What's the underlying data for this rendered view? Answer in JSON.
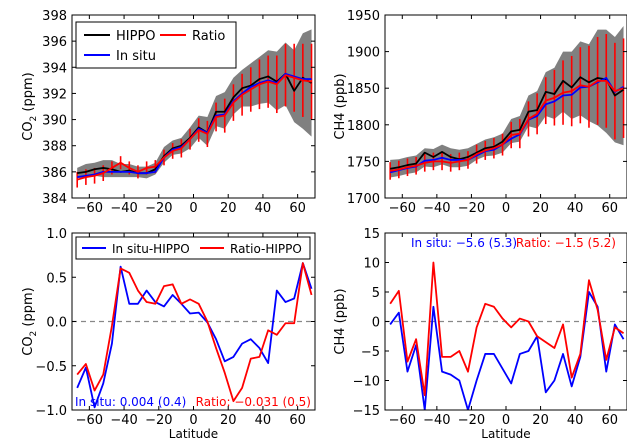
{
  "chart_data": [
    {
      "id": "co2-profile",
      "type": "line",
      "xlabel": "",
      "ylabel_main": "CO",
      "ylabel_sub": "2",
      "ylabel_unit": " (ppm)",
      "xlim": [
        -70,
        70
      ],
      "ylim": [
        384,
        398
      ],
      "xticks": [
        -60,
        -40,
        -20,
        0,
        20,
        40,
        60
      ],
      "yticks": [
        384,
        386,
        388,
        390,
        392,
        394,
        396,
        398
      ],
      "legend": {
        "placement": "top-left",
        "columns": 2
      },
      "x": [
        -67,
        -62,
        -57,
        -52,
        -47,
        -42,
        -37,
        -32,
        -27,
        -22,
        -17,
        -12,
        -7,
        -2,
        3,
        8,
        13,
        18,
        23,
        28,
        33,
        38,
        43,
        48,
        53,
        58,
        63,
        68
      ],
      "series": [
        {
          "name": "HIPPO",
          "color": "#000000",
          "values": [
            385.9,
            386.0,
            386.2,
            386.3,
            386.2,
            386.0,
            386.1,
            385.9,
            385.9,
            386.2,
            387.2,
            387.8,
            388.0,
            388.6,
            389.4,
            389.0,
            390.6,
            390.6,
            391.7,
            392.4,
            392.6,
            393.1,
            393.3,
            392.9,
            393.5,
            392.2,
            393.2,
            392.8
          ]
        },
        {
          "name": "In situ",
          "color": "#0000ff",
          "values": [
            385.6,
            385.7,
            385.8,
            386.0,
            386.0,
            386.0,
            386.0,
            385.9,
            385.9,
            386.0,
            387.1,
            387.7,
            387.9,
            388.5,
            389.3,
            389.0,
            390.3,
            390.4,
            391.4,
            392.0,
            392.5,
            392.8,
            393.0,
            392.8,
            393.5,
            393.3,
            393.1,
            393.1
          ]
        },
        {
          "name": "Ratio",
          "color": "#ff0000",
          "values": [
            385.4,
            385.6,
            385.7,
            385.9,
            386.3,
            386.7,
            386.3,
            386.0,
            386.3,
            386.4,
            387.1,
            387.6,
            387.8,
            388.5,
            389.2,
            388.9,
            390.2,
            390.3,
            391.3,
            391.9,
            392.3,
            392.7,
            392.9,
            392.7,
            393.4,
            393.2,
            393.0,
            392.9
          ],
          "error": [
            0.6,
            0.6,
            0.6,
            0.6,
            0.5,
            0.5,
            0.5,
            0.5,
            0.5,
            0.5,
            0.6,
            0.6,
            0.7,
            0.8,
            0.9,
            1.0,
            1.1,
            1.3,
            1.4,
            1.6,
            1.7,
            1.9,
            2.0,
            2.2,
            2.4,
            2.6,
            2.8,
            2.9
          ]
        }
      ],
      "band": {
        "color": "#808080",
        "lower": [
          385.5,
          385.6,
          385.7,
          385.6,
          385.6,
          385.6,
          385.6,
          385.6,
          385.5,
          385.8,
          386.7,
          387.3,
          387.4,
          387.8,
          388.6,
          388.0,
          389.5,
          389.3,
          390.4,
          391.0,
          391.0,
          391.2,
          391.3,
          390.7,
          391.1,
          389.8,
          389.3,
          388.7
        ],
        "upper": [
          386.3,
          386.6,
          386.7,
          386.9,
          386.9,
          386.6,
          386.6,
          386.4,
          386.4,
          386.7,
          387.9,
          388.4,
          388.6,
          389.4,
          390.3,
          390.2,
          391.8,
          392.1,
          393.2,
          393.8,
          394.3,
          394.8,
          395.3,
          395.2,
          395.9,
          395.3,
          396.6,
          396.9
        ]
      }
    },
    {
      "id": "ch4-profile",
      "type": "line",
      "xlabel": "",
      "ylabel_main": "CH4",
      "ylabel_sub": "",
      "ylabel_unit": " (ppb)",
      "xlim": [
        -70,
        70
      ],
      "ylim": [
        1700,
        1950
      ],
      "xticks": [
        -60,
        -40,
        -20,
        0,
        20,
        40,
        60
      ],
      "yticks": [
        1700,
        1750,
        1800,
        1850,
        1900,
        1950
      ],
      "x": [
        -67,
        -62,
        -57,
        -52,
        -47,
        -42,
        -37,
        -32,
        -27,
        -22,
        -17,
        -12,
        -7,
        -2,
        3,
        8,
        13,
        18,
        23,
        28,
        33,
        38,
        43,
        48,
        53,
        58,
        63,
        68
      ],
      "series": [
        {
          "name": "HIPPO",
          "color": "#000000",
          "values": [
            1740,
            1742,
            1745,
            1747,
            1762,
            1756,
            1763,
            1756,
            1753,
            1756,
            1762,
            1768,
            1770,
            1777,
            1791,
            1793,
            1818,
            1820,
            1845,
            1842,
            1860,
            1851,
            1865,
            1858,
            1864,
            1862,
            1840,
            1848
          ]
        },
        {
          "name": "In situ",
          "color": "#0000ff",
          "values": [
            1735,
            1738,
            1741,
            1743,
            1751,
            1752,
            1755,
            1752,
            1752,
            1752,
            1758,
            1764,
            1766,
            1773,
            1781,
            1787,
            1807,
            1812,
            1828,
            1832,
            1840,
            1841,
            1851,
            1852,
            1858,
            1864,
            1845,
            1852
          ]
        },
        {
          "name": "Ratio",
          "color": "#ff0000",
          "values": [
            1737,
            1739,
            1742,
            1744,
            1748,
            1750,
            1750,
            1748,
            1750,
            1752,
            1760,
            1765,
            1768,
            1773,
            1786,
            1788,
            1808,
            1815,
            1833,
            1837,
            1844,
            1846,
            1854,
            1852,
            1860,
            1860,
            1846,
            1850
          ],
          "error": [
            12,
            12,
            12,
            12,
            12,
            12,
            12,
            12,
            12,
            12,
            13,
            13,
            14,
            15,
            18,
            20,
            24,
            28,
            32,
            38,
            44,
            48,
            52,
            56,
            60,
            64,
            66,
            68
          ]
        }
      ],
      "band": {
        "color": "#808080",
        "lower": [
          1728,
          1730,
          1733,
          1735,
          1743,
          1742,
          1746,
          1742,
          1742,
          1744,
          1752,
          1757,
          1758,
          1762,
          1775,
          1777,
          1798,
          1795,
          1812,
          1808,
          1818,
          1808,
          1813,
          1805,
          1799,
          1789,
          1776,
          1772
        ],
        "upper": [
          1752,
          1753,
          1756,
          1758,
          1768,
          1767,
          1773,
          1768,
          1766,
          1768,
          1774,
          1780,
          1783,
          1788,
          1808,
          1812,
          1840,
          1846,
          1872,
          1878,
          1900,
          1900,
          1914,
          1910,
          1930,
          1930,
          1920,
          1935
        ]
      }
    },
    {
      "id": "co2-difference",
      "type": "line",
      "xlabel": "Latitude",
      "ylabel_main": "CO",
      "ylabel_sub": "2",
      "ylabel_unit": " (ppm)",
      "xlim": [
        -70,
        70
      ],
      "ylim": [
        -1.0,
        1.0
      ],
      "xticks": [
        -60,
        -40,
        -20,
        0,
        20,
        40,
        60
      ],
      "ytick_labels": [
        "1.0",
        "0.5",
        "0.0",
        "−0.5",
        "−1.0"
      ],
      "yticks": [
        1.0,
        0.5,
        0.0,
        -0.5,
        -1.0
      ],
      "zero_line": true,
      "legend": {
        "placement": "top",
        "columns": 2
      },
      "annotations": [
        {
          "text": "In situ: 0.004 (0.4)",
          "color": "#0000ff"
        },
        {
          "text": "Ratio: −0.031 (0.5)",
          "color": "#ff0000"
        }
      ],
      "x": [
        -67,
        -62,
        -57,
        -52,
        -47,
        -42,
        -37,
        -32,
        -27,
        -22,
        -17,
        -12,
        -7,
        -2,
        3,
        8,
        13,
        18,
        23,
        28,
        33,
        38,
        43,
        48,
        53,
        58,
        63,
        68
      ],
      "series": [
        {
          "name": "In situ-HIPPO",
          "color": "#0000ff",
          "values": [
            -0.75,
            -0.52,
            -0.97,
            -0.7,
            -0.25,
            0.62,
            0.2,
            0.2,
            0.35,
            0.22,
            0.17,
            0.3,
            0.2,
            0.09,
            0.1,
            -0.01,
            -0.2,
            -0.45,
            -0.4,
            -0.25,
            -0.2,
            -0.3,
            -0.47,
            0.35,
            0.22,
            0.26,
            0.66,
            0.37
          ]
        },
        {
          "name": "Ratio-HIPPO",
          "color": "#ff0000",
          "values": [
            -0.6,
            -0.48,
            -0.78,
            -0.6,
            -0.05,
            0.6,
            0.55,
            0.35,
            0.22,
            0.2,
            0.4,
            0.42,
            0.2,
            0.25,
            0.2,
            0.0,
            -0.3,
            -0.58,
            -0.9,
            -0.75,
            -0.42,
            -0.4,
            -0.1,
            -0.15,
            -0.02,
            -0.02,
            0.66,
            0.3
          ]
        }
      ]
    },
    {
      "id": "ch4-difference",
      "type": "line",
      "xlabel": "Latitude",
      "ylabel_main": "CH4",
      "ylabel_sub": "",
      "ylabel_unit": " (ppb)",
      "xlim": [
        -70,
        70
      ],
      "ylim": [
        -15,
        15
      ],
      "xticks": [
        -60,
        -40,
        -20,
        0,
        20,
        40,
        60
      ],
      "ytick_labels": [
        "15",
        "10",
        "5",
        "0",
        "−5",
        "−10",
        "−15"
      ],
      "yticks": [
        15,
        10,
        5,
        0,
        -5,
        -10,
        -15
      ],
      "zero_line": true,
      "annotations": [
        {
          "text": "In situ: −5.6 (5.3)",
          "color": "#0000ff"
        },
        {
          "text": "Ratio: −1.5 (5.2)",
          "color": "#ff0000"
        }
      ],
      "x": [
        -67,
        -62,
        -57,
        -52,
        -47,
        -42,
        -37,
        -32,
        -27,
        -22,
        -17,
        -12,
        -7,
        -2,
        3,
        8,
        13,
        18,
        23,
        28,
        33,
        38,
        43,
        48,
        53,
        58,
        63,
        68
      ],
      "series": [
        {
          "name": "In situ",
          "color": "#0000ff",
          "values": [
            -0.5,
            1.5,
            -8.5,
            -4.0,
            -15.0,
            2.5,
            -8.5,
            -9.0,
            -10.0,
            -15.0,
            -10.0,
            -5.5,
            -5.5,
            -8.0,
            -10.5,
            -5.5,
            -5.0,
            -2.5,
            -12.0,
            -10.0,
            -5.5,
            -11.0,
            -6.0,
            5.0,
            2.5,
            -8.5,
            -0.5,
            -3.0
          ]
        },
        {
          "name": "Ratio",
          "color": "#ff0000",
          "values": [
            3.0,
            5.2,
            -6.8,
            -3.0,
            -12.5,
            10.0,
            -6.0,
            -6.0,
            -5.0,
            -8.5,
            -1.0,
            3.0,
            2.5,
            0.5,
            -1.0,
            0.5,
            0.0,
            -2.5,
            -3.5,
            -4.5,
            -0.5,
            -9.5,
            -5.5,
            7.0,
            2.0,
            -6.5,
            -1.0,
            -2.0
          ]
        }
      ]
    }
  ]
}
